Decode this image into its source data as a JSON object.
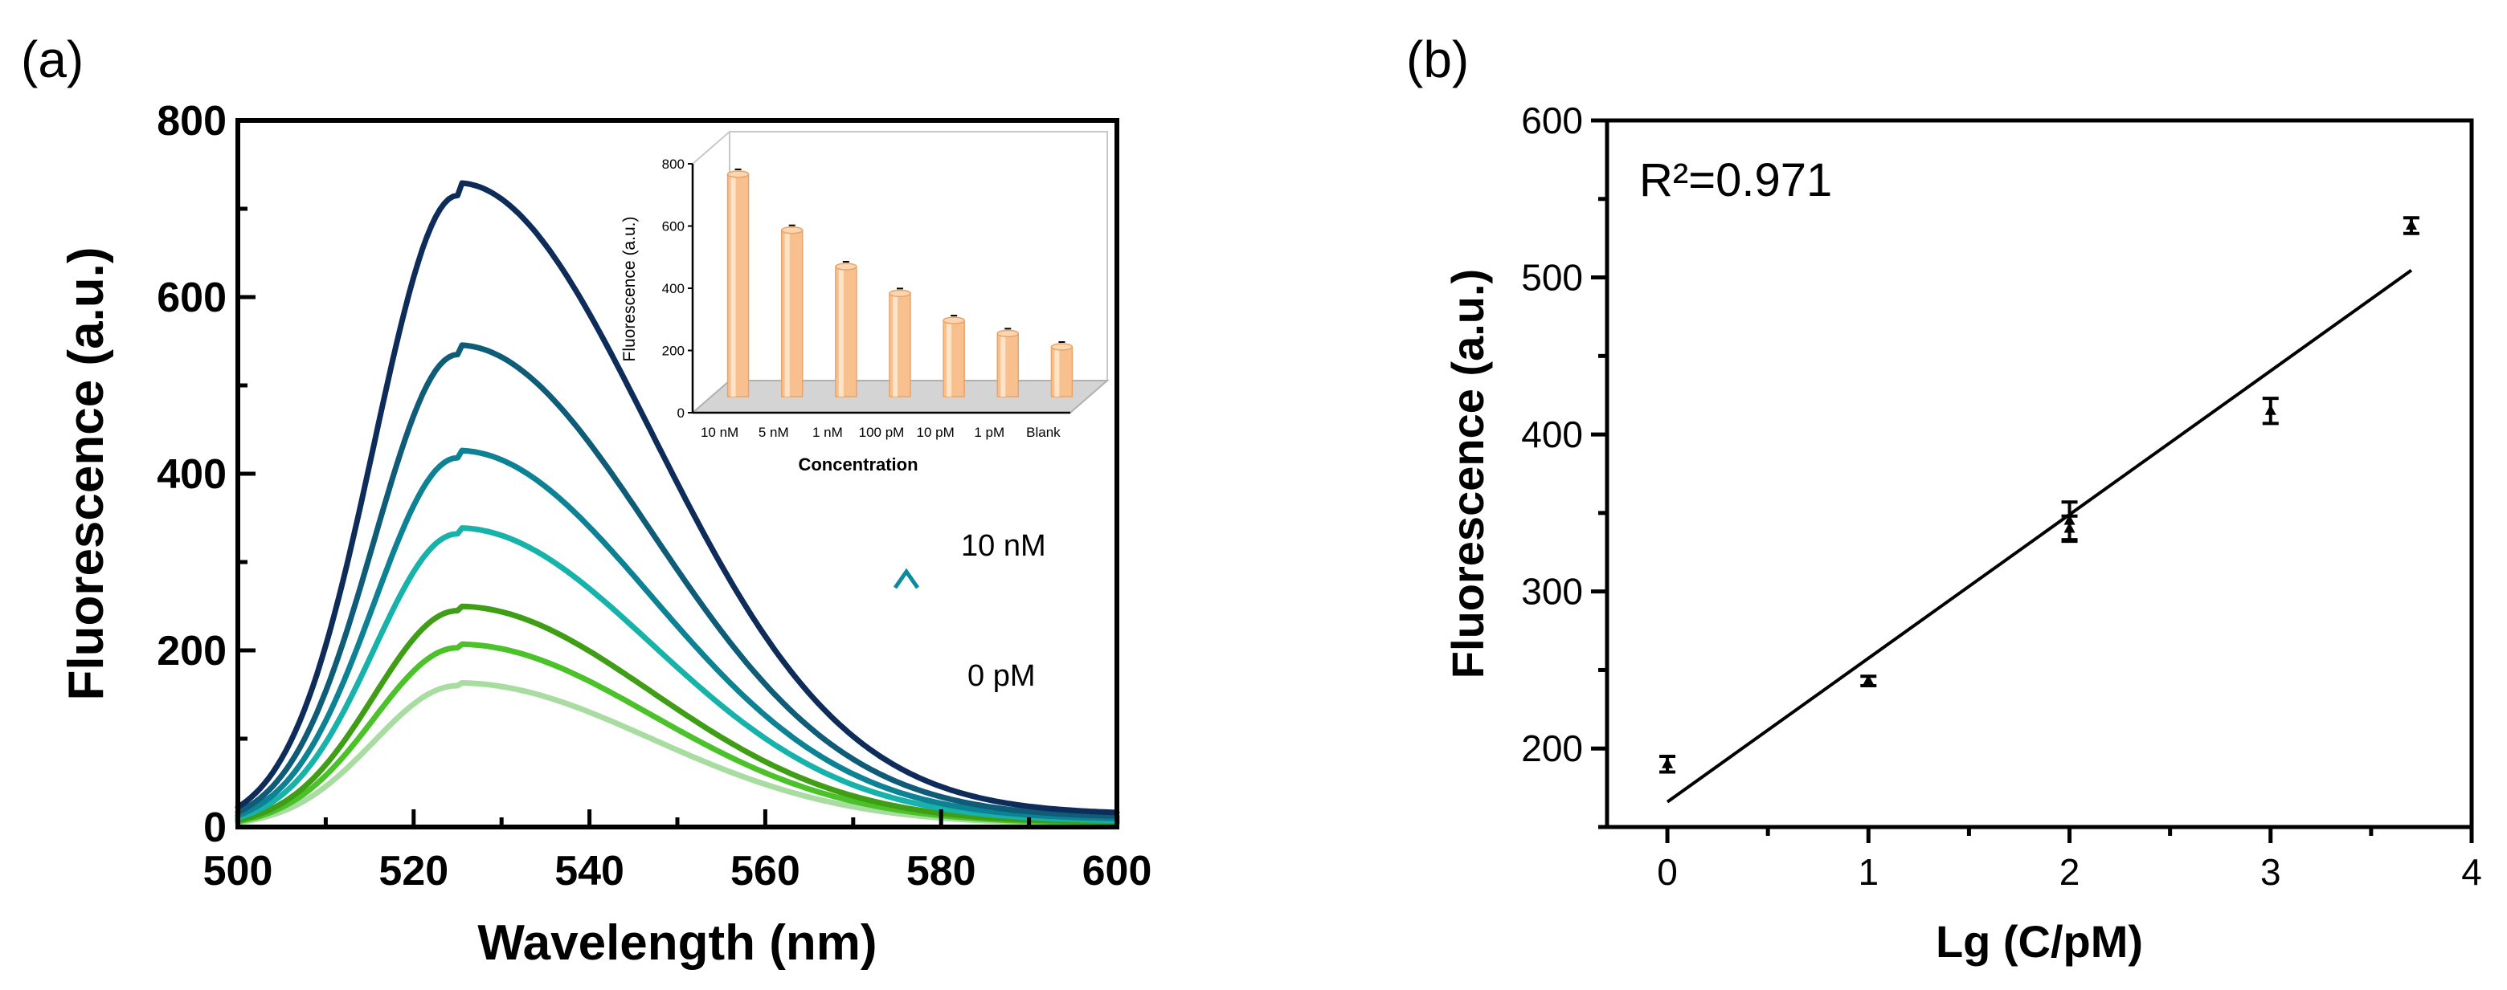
{
  "chart_data": [
    {
      "panel_label": "(a)",
      "type": "line",
      "xlabel": "Wavelength (nm)",
      "ylabel": "Fluorescence (a.u.)",
      "xlim": [
        500,
        600
      ],
      "ylim": [
        0,
        800
      ],
      "xticks": [
        "500",
        "520",
        "540",
        "560",
        "580",
        "600"
      ],
      "yticks": [
        "0",
        "200",
        "400",
        "600",
        "800"
      ],
      "peak_wavelength": 525,
      "series": [
        {
          "name": "0 pM",
          "peak": 160,
          "color": "#a8dca0"
        },
        {
          "name": "1 pM",
          "peak": 203,
          "color": "#4cc22a"
        },
        {
          "name": "10 pM",
          "peak": 245,
          "color": "#3f9e16"
        },
        {
          "name": "100 pM",
          "peak": 332,
          "color": "#17b2aa"
        },
        {
          "name": "1 nM",
          "peak": 418,
          "color": "#0c8294"
        },
        {
          "name": "5 nM",
          "peak": 535,
          "color": "#0f5c78"
        },
        {
          "name": "10 nM",
          "peak": 715,
          "color": "#0e2c5a"
        }
      ],
      "annotations": {
        "top": "10 nM",
        "bottom": "0 pM",
        "arrow_color": "#0e8aa0"
      },
      "inset": {
        "type": "bar",
        "xlabel": "Concentration",
        "ylabel": "Fluorescence (a.u.)",
        "ylim": [
          0,
          800
        ],
        "yticks": [
          "0",
          "200",
          "400",
          "600",
          "800"
        ],
        "categories": [
          "10 nM",
          "5 nM",
          "1 nM",
          "100 pM",
          "10 pM",
          "1 pM",
          "Blank"
        ],
        "values": [
          715,
          535,
          418,
          332,
          245,
          203,
          160
        ],
        "bar_color": "#f7c08e"
      }
    },
    {
      "panel_label": "(b)",
      "type": "scatter",
      "xlabel": "Lg (C/pM)",
      "ylabel": "Fluorescence (a.u.)",
      "xlim": [
        -0.3,
        4
      ],
      "ylim": [
        150,
        600
      ],
      "xticks": [
        "0",
        "1",
        "2",
        "3",
        "4"
      ],
      "yticks": [
        "200",
        "300",
        "400",
        "500",
        "600"
      ],
      "r2_label": "R²=0.971",
      "points": [
        {
          "x": 0,
          "y": 190,
          "err": 5
        },
        {
          "x": 1,
          "y": 243,
          "err": 3
        },
        {
          "x": 2,
          "y": 345,
          "err": 12
        },
        {
          "x": 2,
          "y": 340,
          "err": 8
        },
        {
          "x": 3,
          "y": 415,
          "err": 8
        },
        {
          "x": 3.7,
          "y": 533,
          "err": 5
        }
      ],
      "fit": {
        "slope": 91.5,
        "intercept": 166,
        "x_range": [
          0,
          3.7
        ]
      }
    }
  ]
}
